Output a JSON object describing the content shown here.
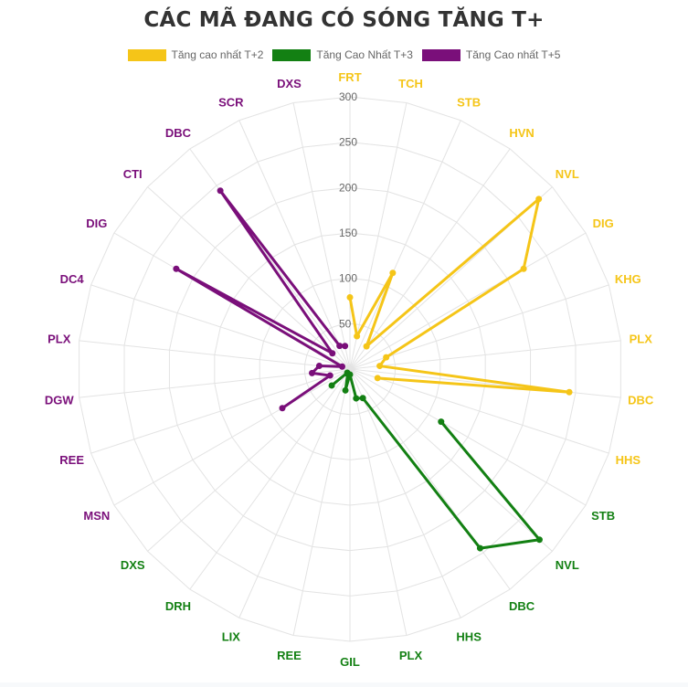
{
  "title": "CÁC MÃ ĐANG CÓ SÓNG TĂNG T+",
  "legend": [
    {
      "label": "Tăng cao nhất T+2",
      "color": "#f5c518"
    },
    {
      "label": "Tăng Cao Nhất T+3",
      "color": "#138013"
    },
    {
      "label": "Tăng Cao nhất T+5",
      "color": "#7a0f7a"
    }
  ],
  "colors": {
    "grid": "#e3e3e3",
    "tick_label": "#666666",
    "title": "#333333"
  },
  "chart_data": {
    "type": "radar",
    "title": "CÁC MÃ ĐANG CÓ SÓNG TĂNG T+",
    "r_ticks": [
      50,
      100,
      150,
      200,
      250,
      300
    ],
    "r_range": [
      0,
      300
    ],
    "grid": true,
    "legend_position": "top",
    "categories": [
      "FRT",
      "TCH",
      "STB",
      "HVN",
      "NVL",
      "DIG",
      "KHG",
      "PLX",
      "DBC",
      "HHS",
      "STB",
      "NVL",
      "DBC",
      "HHS",
      "PLX",
      "GIL",
      "REE",
      "LIX",
      "DRH",
      "DXS",
      "MSN",
      "REE",
      "DGW",
      "PLX",
      "DC4",
      "DIG",
      "CTI",
      "DBC",
      "SCR",
      "DXS"
    ],
    "series": [
      {
        "name": "Tăng cao nhất T+2",
        "color": "#f5c518",
        "start_index": 0,
        "labels": [
          "FRT",
          "TCH",
          "STB",
          "HVN",
          "NVL",
          "DIG",
          "KHG",
          "PLX",
          "DBC",
          "HHS"
        ],
        "values": [
          79,
          37,
          116,
          31,
          280,
          221,
          42,
          33,
          243,
          32
        ]
      },
      {
        "name": "Tăng Cao Nhất T+3",
        "color": "#138013",
        "start_index": 10,
        "labels": [
          "STB",
          "NVL",
          "DBC",
          "HHS",
          "PLX",
          "GIL",
          "REE",
          "LIX",
          "DRH",
          "DXS"
        ],
        "values": [
          116,
          281,
          244,
          35,
          33,
          6,
          24,
          6,
          5,
          27
        ]
      },
      {
        "name": "Tăng Cao nhất T+5",
        "color": "#7a0f7a",
        "start_index": 20,
        "labels": [
          "MSN",
          "REE",
          "DGW",
          "PLX",
          "DC4",
          "DIG",
          "CTI",
          "DBC",
          "SCR",
          "DXS"
        ],
        "values": [
          86,
          23,
          42,
          34,
          9,
          221,
          26,
          243,
          28,
          26
        ]
      }
    ]
  }
}
